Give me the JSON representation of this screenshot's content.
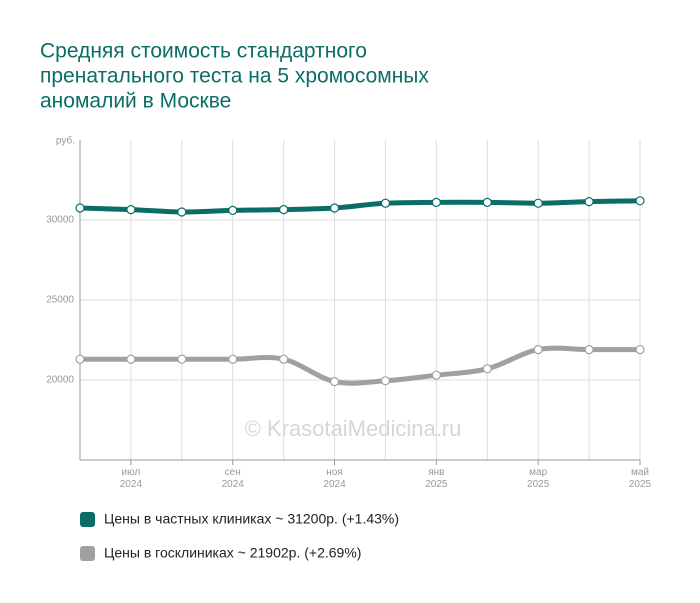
{
  "chart_data": {
    "type": "line",
    "title": [
      "Средняя стоимость стандартного",
      "пренатального теста на 5 хромосомных",
      "аномалий в Москве"
    ],
    "y_label": "руб.",
    "watermark": "© KrasotaiMedicina.ru",
    "categories": [
      null,
      [
        "июл",
        "2024"
      ],
      null,
      [
        "сен",
        "2024"
      ],
      null,
      [
        "ноя",
        "2024"
      ],
      null,
      [
        "янв",
        "2025"
      ],
      null,
      [
        "мар",
        "2025"
      ],
      null,
      [
        "май",
        "2025"
      ]
    ],
    "series": [
      {
        "name": "Цены в частных клиниках ~ 31200р. (+1.43%)",
        "color": "#0b6e66",
        "values": [
          30750,
          30650,
          30500,
          30600,
          30650,
          30750,
          31050,
          31100,
          31100,
          31050,
          31150,
          31200
        ]
      },
      {
        "name": "Цены в госклиниках ~ 21902р. (+2.69%)",
        "color": "#a0a0a0",
        "values": [
          21300,
          21300,
          21300,
          21300,
          21300,
          19900,
          19950,
          20300,
          20700,
          21900,
          21900,
          21902
        ]
      }
    ],
    "ylim": [
      15000,
      35000
    ],
    "yticks": [
      20000,
      25000,
      30000
    ],
    "grid": true
  }
}
